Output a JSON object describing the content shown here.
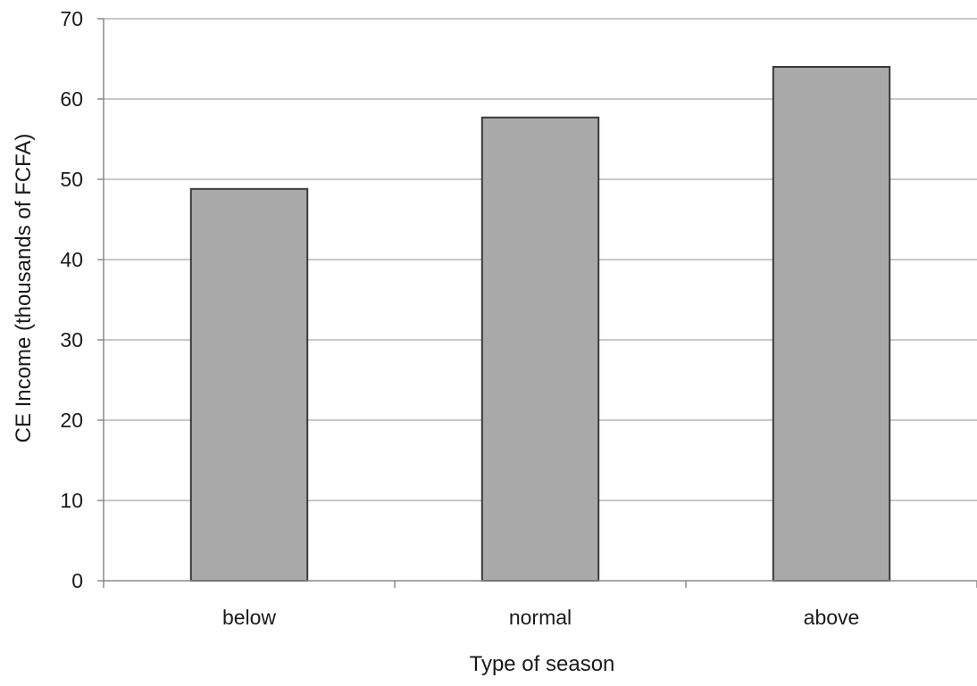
{
  "chart_data": {
    "type": "bar",
    "categories": [
      "below",
      "normal",
      "above"
    ],
    "values": [
      48.8,
      57.7,
      64.0
    ],
    "xlabel": "Type of season",
    "ylabel": "CE Income (thousands of FCFA)",
    "ylim": [
      0,
      70
    ],
    "yticks": [
      0,
      10,
      20,
      30,
      40,
      50,
      60,
      70
    ],
    "grid": true,
    "legend": "none",
    "colors": {
      "bar_fill": "#a9a9a9",
      "bar_stroke": "#3a3a3a",
      "grid": "#b5b5b5",
      "axis": "#8a8a8a"
    }
  }
}
